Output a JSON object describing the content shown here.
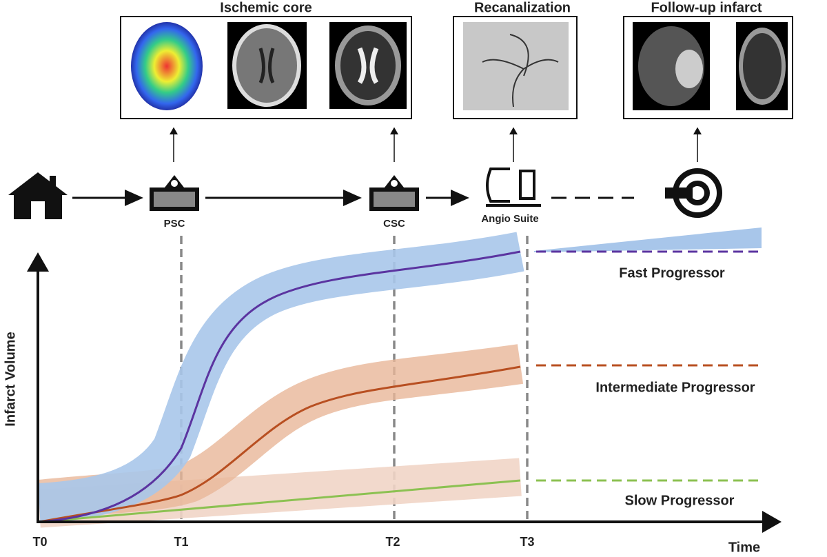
{
  "panels": [
    {
      "title": "Ischemic core"
    },
    {
      "title": "Recanalization"
    },
    {
      "title": "Follow-up infarct"
    }
  ],
  "locations": [
    "PSC",
    "CSC",
    "Angio Suite"
  ],
  "axes": {
    "y_label": "Infarct Volume",
    "x_label": "Time",
    "time_points": [
      "T0",
      "T1",
      "T2",
      "T3"
    ]
  },
  "groups": [
    "Fast Progressor",
    "Intermediate Progressor",
    "Slow Progressor"
  ]
}
